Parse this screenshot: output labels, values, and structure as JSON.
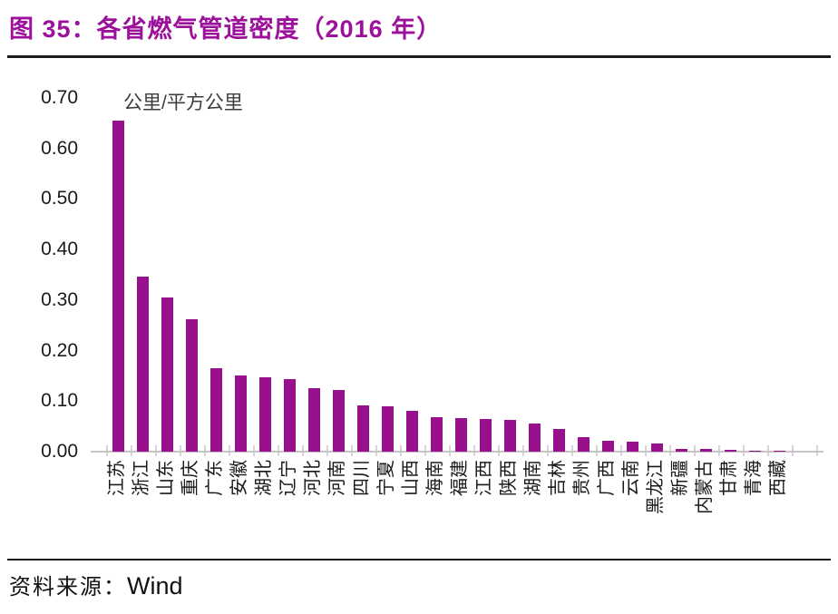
{
  "page": {
    "title": "图 35：各省燃气管道密度（2016 年）",
    "footer": {
      "source_label": "资料来源：",
      "source_name": "Wind"
    }
  },
  "chart_data": {
    "type": "bar",
    "title": "图 35：各省燃气管道密度（2016 年）",
    "unit_label": "公里/平方公里",
    "categories": [
      "江苏",
      "浙江",
      "山东",
      "重庆",
      "广东",
      "安徽",
      "湖北",
      "辽宁",
      "河北",
      "河南",
      "四川",
      "宁夏",
      "山西",
      "海南",
      "福建",
      "江西",
      "陕西",
      "湖南",
      "吉林",
      "贵州",
      "广西",
      "云南",
      "黑龙江",
      "新疆",
      "内蒙古",
      "甘肃",
      "青海",
      "西藏"
    ],
    "values": [
      0.655,
      0.347,
      0.305,
      0.262,
      0.165,
      0.15,
      0.147,
      0.144,
      0.126,
      0.122,
      0.091,
      0.09,
      0.081,
      0.068,
      0.066,
      0.064,
      0.062,
      0.055,
      0.045,
      0.028,
      0.021,
      0.02,
      0.016,
      0.005,
      0.005,
      0.004,
      0.002,
      0.001
    ],
    "ylim": [
      0.0,
      0.7
    ],
    "ytick_labels": [
      "0.00",
      "0.10",
      "0.20",
      "0.30",
      "0.40",
      "0.50",
      "0.60",
      "0.70"
    ],
    "grid": false,
    "legend": null,
    "x_label_rotation": -90,
    "source": "Wind"
  },
  "colors": {
    "title": "#9C109C",
    "bar": "#98108C",
    "axis_line": "#C8C4C8",
    "tick": "#DCD2DC",
    "text": "#1A1A1A",
    "rule": "#1A1A1A"
  }
}
